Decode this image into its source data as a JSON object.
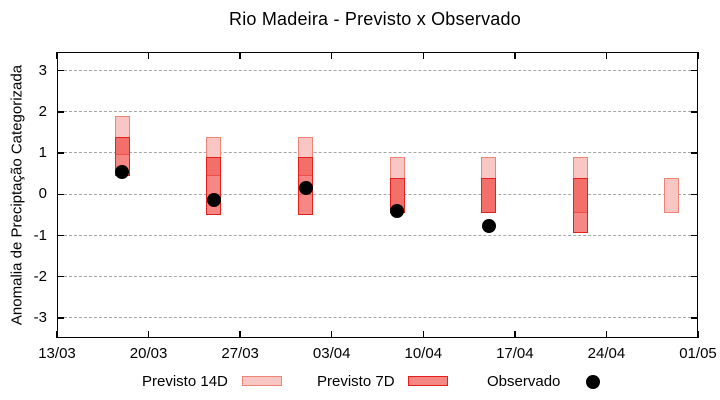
{
  "chart_data": {
    "type": "bar",
    "subtype": "floating-range-bars-with-scatter-overlay",
    "title": "Rio Madeira - Previsto x Observado",
    "ylabel": "Anomalia de Preciptação Categorizada",
    "xlabel": "",
    "ylim": [
      -3.45,
      3.45
    ],
    "y_ticks": [
      -3,
      -2,
      -1,
      0,
      1,
      2,
      3
    ],
    "x_ticks": [
      {
        "label": "13/03",
        "day": 0
      },
      {
        "label": "20/03",
        "day": 7
      },
      {
        "label": "27/03",
        "day": 14
      },
      {
        "label": "03/04",
        "day": 21
      },
      {
        "label": "10/04",
        "day": 28
      },
      {
        "label": "17/04",
        "day": 35
      },
      {
        "label": "24/04",
        "day": 42
      },
      {
        "label": "01/05",
        "day": 49
      }
    ],
    "grid": true,
    "legend_position": "bottom",
    "series_names": [
      "Previsto 14D",
      "Previsto 7D",
      "Observado"
    ],
    "bars": [
      {
        "date": "18/03",
        "day": 5,
        "previsto_14d": [
          0.95,
          1.9
        ],
        "previsto_7d": [
          0.45,
          1.4
        ],
        "observado": 0.55
      },
      {
        "date": "25/03",
        "day": 12,
        "previsto_14d": [
          0.45,
          1.4
        ],
        "previsto_7d": [
          -0.5,
          0.9
        ],
        "observado": -0.15
      },
      {
        "date": "01/04",
        "day": 19,
        "previsto_14d": [
          0.45,
          1.4
        ],
        "previsto_7d": [
          -0.5,
          0.9
        ],
        "observado": 0.15
      },
      {
        "date": "08/04",
        "day": 26,
        "previsto_14d": [
          -0.45,
          0.9
        ],
        "previsto_7d": [
          -0.45,
          0.4
        ],
        "observado": -0.4
      },
      {
        "date": "15/04",
        "day": 33,
        "previsto_14d": [
          -0.45,
          0.9
        ],
        "previsto_7d": [
          -0.45,
          0.4
        ],
        "observado": -0.78
      },
      {
        "date": "22/04",
        "day": 40,
        "previsto_14d": [
          -0.45,
          0.9
        ],
        "previsto_7d": [
          -0.95,
          0.4
        ],
        "observado": null
      },
      {
        "date": "29/04",
        "day": 47,
        "previsto_14d": [
          -0.45,
          0.4
        ],
        "previsto_7d": null,
        "observado": null
      }
    ]
  },
  "legend": {
    "items": [
      {
        "label": "Previsto 14D",
        "swatch": "light-pink-box"
      },
      {
        "label": "Previsto 7D",
        "swatch": "red-box"
      },
      {
        "label": "Observado",
        "swatch": "black-dot"
      }
    ]
  },
  "colors": {
    "previsto_14d_fill": "#f9c7c3",
    "previsto_14d_border": "#ee8478",
    "previsto_7d_fill": "rgba(236,38,32,0.55)",
    "previsto_7d_border": "#e3201b",
    "observado": "#000000",
    "grid": "#a6a6a6",
    "axis": "#000000"
  }
}
